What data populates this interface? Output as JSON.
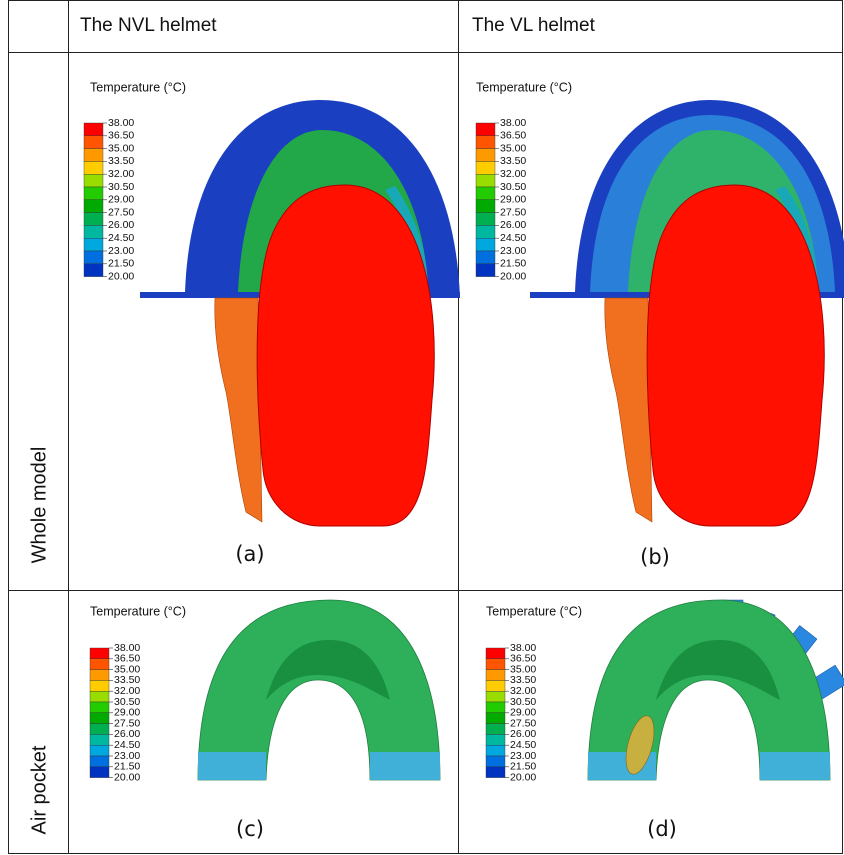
{
  "header": {
    "columns": [
      "The NVL helmet",
      "The VL helmet"
    ]
  },
  "rows": [
    {
      "label": "Whole model",
      "panels": [
        {
          "legend_title": "Temperature (°C)",
          "legend_labels": [
            "38.00",
            "36.50",
            "35.00",
            "33.50",
            "32.00",
            "30.50",
            "29.00",
            "27.50",
            "26.00",
            "24.50",
            "23.00",
            "21.50",
            "20.00"
          ],
          "caption": "(a)"
        },
        {
          "legend_title": "Temperature (°C)",
          "legend_labels": [
            "38.00",
            "36.50",
            "35.00",
            "33.50",
            "32.00",
            "30.50",
            "29.00",
            "27.50",
            "26.00",
            "24.50",
            "23.00",
            "21.50",
            "20.00"
          ],
          "caption": "(b)"
        }
      ]
    },
    {
      "label": "Air pocket",
      "panels": [
        {
          "legend_title": "Temperature (°C)",
          "legend_labels": [
            "38.00",
            "36.50",
            "35.00",
            "33.50",
            "32.00",
            "30.50",
            "29.00",
            "27.50",
            "26.00",
            "24.50",
            "23.00",
            "21.50",
            "20.00"
          ],
          "caption": "(c)"
        },
        {
          "legend_title": "Temperature (°C)",
          "legend_labels": [
            "38.00",
            "36.50",
            "35.00",
            "33.50",
            "32.00",
            "30.50",
            "29.00",
            "27.50",
            "26.00",
            "24.50",
            "23.00",
            "21.50",
            "20.00"
          ],
          "caption": "(d)"
        }
      ]
    }
  ]
}
